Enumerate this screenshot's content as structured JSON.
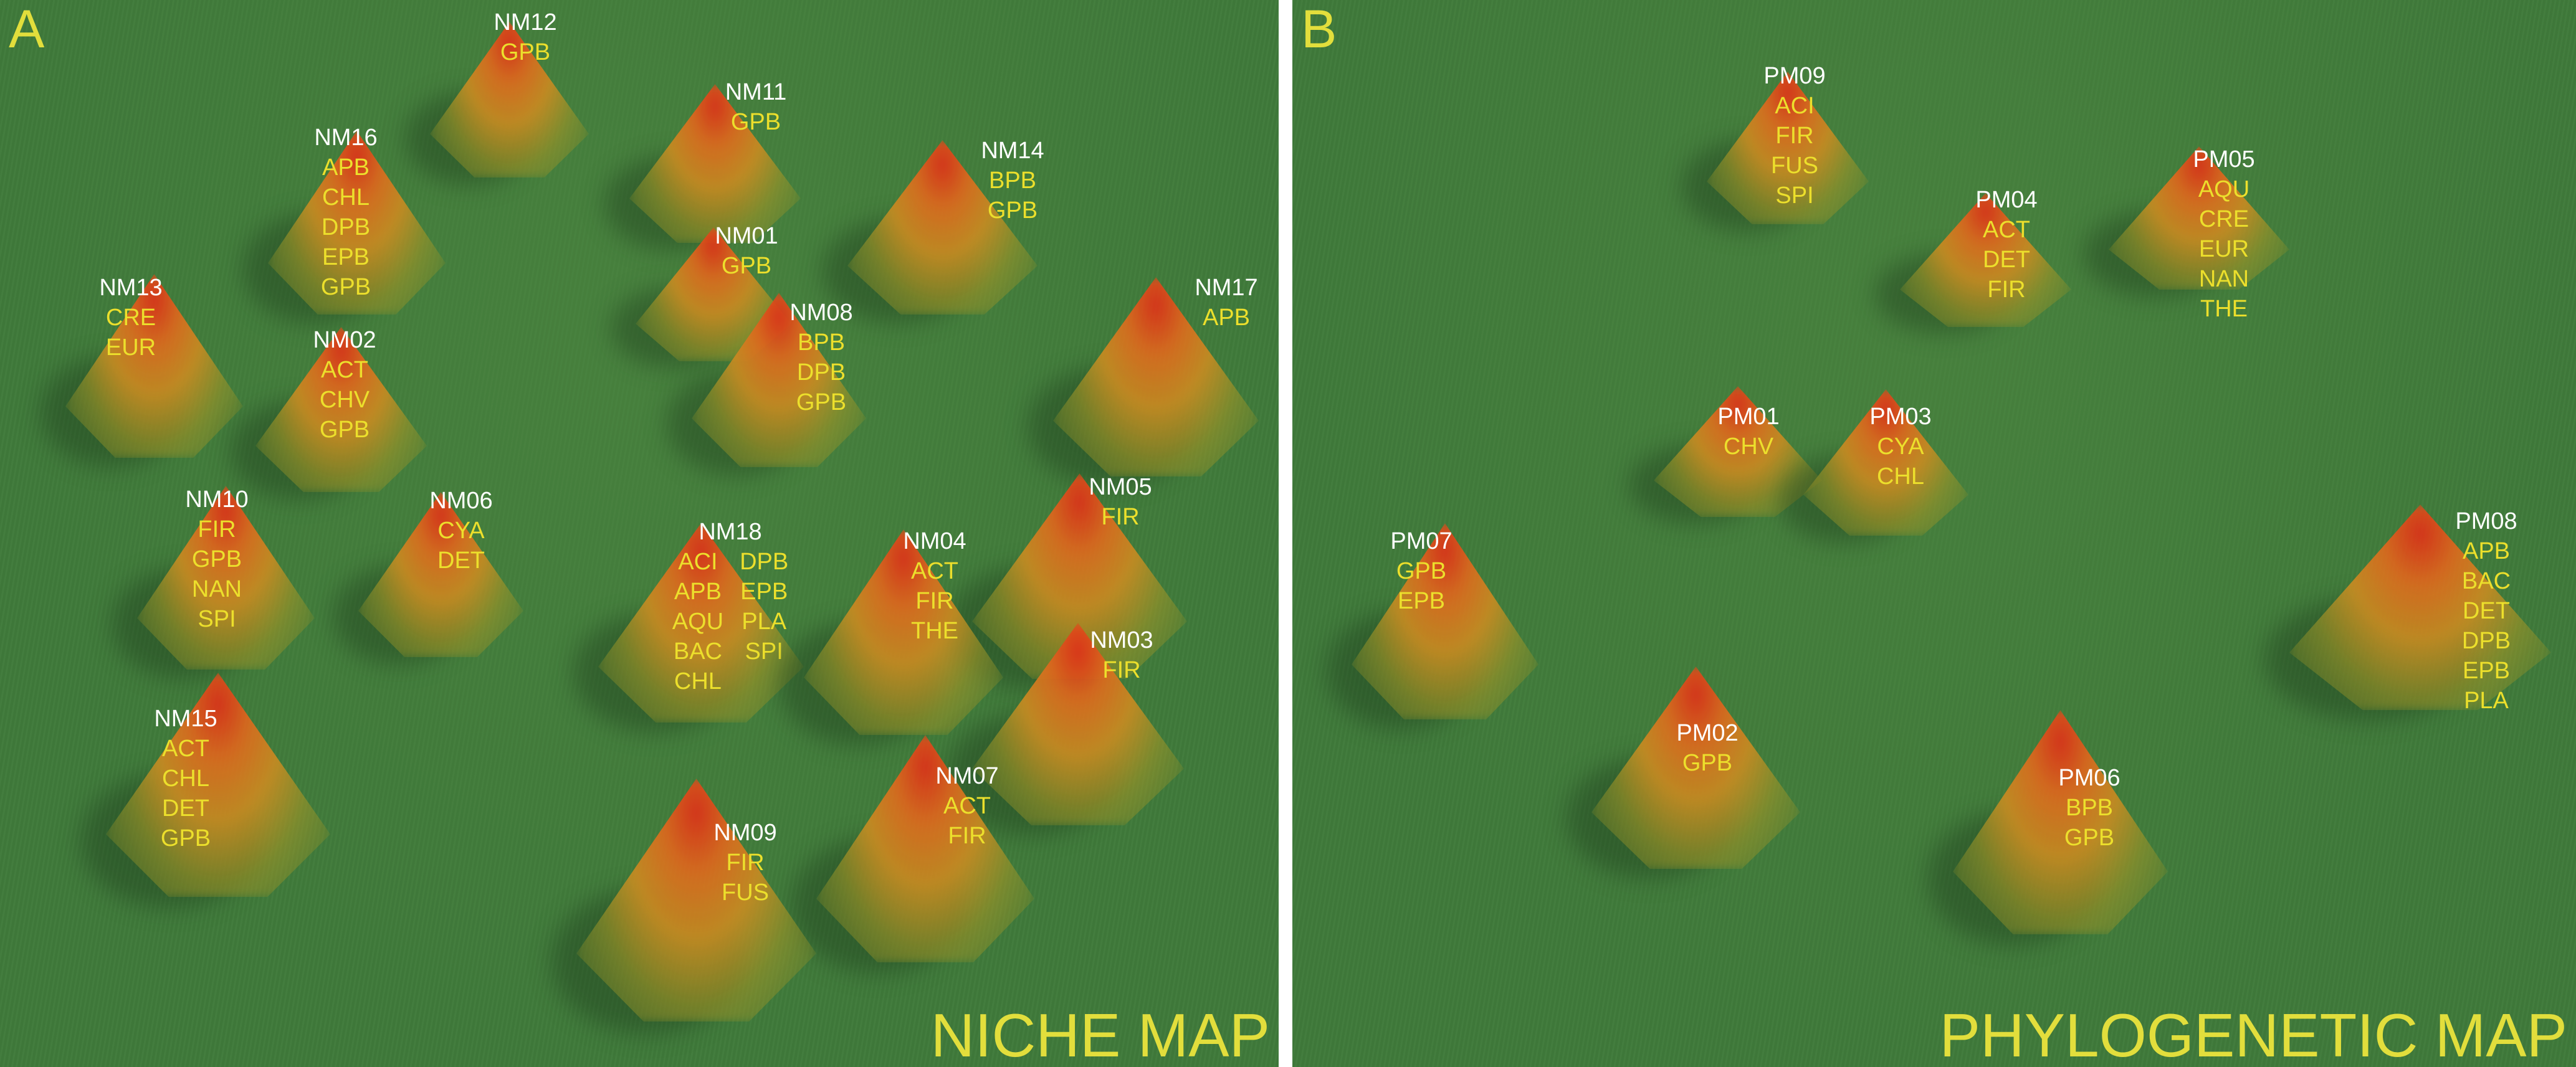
{
  "panels": [
    {
      "letter": "A",
      "title": "NICHE MAP",
      "nodes": [
        {
          "name": "NM12",
          "codes": [
            "GPB"
          ]
        },
        {
          "name": "NM11",
          "codes": [
            "GPB"
          ]
        },
        {
          "name": "NM16",
          "codes": [
            "APB",
            "CHL",
            "DPB",
            "EPB",
            "GPB"
          ]
        },
        {
          "name": "NM14",
          "codes": [
            "BPB",
            "GPB"
          ]
        },
        {
          "name": "NM01",
          "codes": [
            "GPB"
          ]
        },
        {
          "name": "NM13",
          "codes": [
            "CRE",
            "EUR"
          ]
        },
        {
          "name": "NM08",
          "codes": [
            "BPB",
            "DPB",
            "GPB"
          ]
        },
        {
          "name": "NM17",
          "codes": [
            "APB"
          ]
        },
        {
          "name": "NM02",
          "codes": [
            "ACT",
            "CHV",
            "GPB"
          ]
        },
        {
          "name": "NM10",
          "codes": [
            "FIR",
            "GPB",
            "NAN",
            "SPI"
          ]
        },
        {
          "name": "NM06",
          "codes": [
            "CYA",
            "DET"
          ]
        },
        {
          "name": "NM18",
          "codes": [
            "ACI",
            "APB",
            "AQU",
            "BAC",
            "CHL"
          ],
          "codes2": [
            "DPB",
            "EPB",
            "PLA",
            "SPI"
          ]
        },
        {
          "name": "NM05",
          "codes": [
            "FIR"
          ]
        },
        {
          "name": "NM04",
          "codes": [
            "ACT",
            "FIR",
            "THE"
          ]
        },
        {
          "name": "NM03",
          "codes": [
            "FIR"
          ]
        },
        {
          "name": "NM15",
          "codes": [
            "ACT",
            "CHL",
            "DET",
            "GPB"
          ]
        },
        {
          "name": "NM07",
          "codes": [
            "ACT",
            "FIR"
          ]
        },
        {
          "name": "NM09",
          "codes": [
            "FIR",
            "FUS"
          ]
        }
      ]
    },
    {
      "letter": "B",
      "title": "PHYLOGENETIC MAP",
      "nodes": [
        {
          "name": "PM09",
          "codes": [
            "ACI",
            "FIR",
            "FUS",
            "SPI"
          ]
        },
        {
          "name": "PM04",
          "codes": [
            "ACT",
            "DET",
            "FIR"
          ]
        },
        {
          "name": "PM05",
          "codes": [
            "AQU",
            "CRE",
            "EUR",
            "NAN",
            "THE"
          ]
        },
        {
          "name": "PM01",
          "codes": [
            "CHV"
          ]
        },
        {
          "name": "PM03",
          "codes": [
            "CYA",
            "CHL"
          ]
        },
        {
          "name": "PM07",
          "codes": [
            "GPB",
            "EPB"
          ]
        },
        {
          "name": "PM08",
          "codes": [
            "APB",
            "BAC",
            "DET",
            "DPB",
            "EPB",
            "PLA"
          ]
        },
        {
          "name": "PM02",
          "codes": [
            "GPB"
          ]
        },
        {
          "name": "PM06",
          "codes": [
            "BPB",
            "GPB"
          ]
        }
      ]
    }
  ]
}
